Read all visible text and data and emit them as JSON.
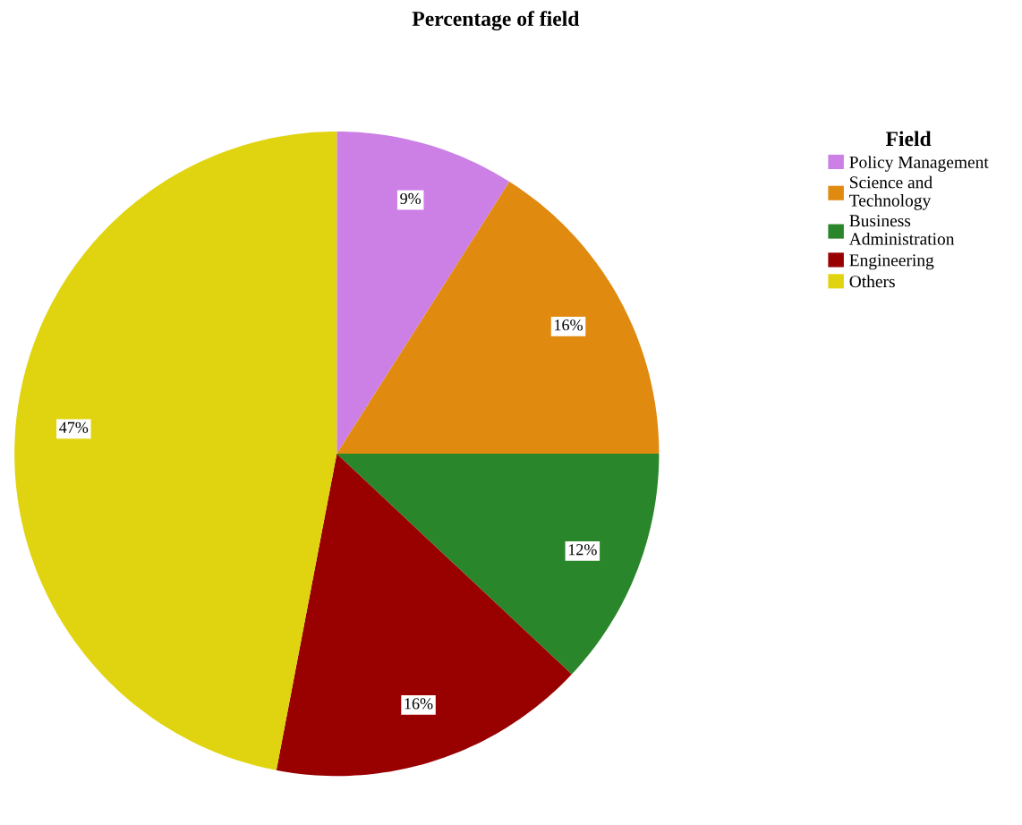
{
  "chart_data": {
    "type": "pie",
    "title": "Percentage of field",
    "legend_title": "Field",
    "categories": [
      "Policy Management",
      "Science and\nTechnology",
      "Business\nAdministration",
      "Engineering",
      "Others"
    ],
    "values": [
      9,
      16,
      12,
      16,
      47
    ],
    "colors": [
      "#cc80e6",
      "#e08a10",
      "#2a862a",
      "#990000",
      "#e0d410"
    ],
    "value_labels": [
      "9%",
      "16%",
      "12%",
      "16%",
      "47%"
    ],
    "legend": "top right"
  }
}
